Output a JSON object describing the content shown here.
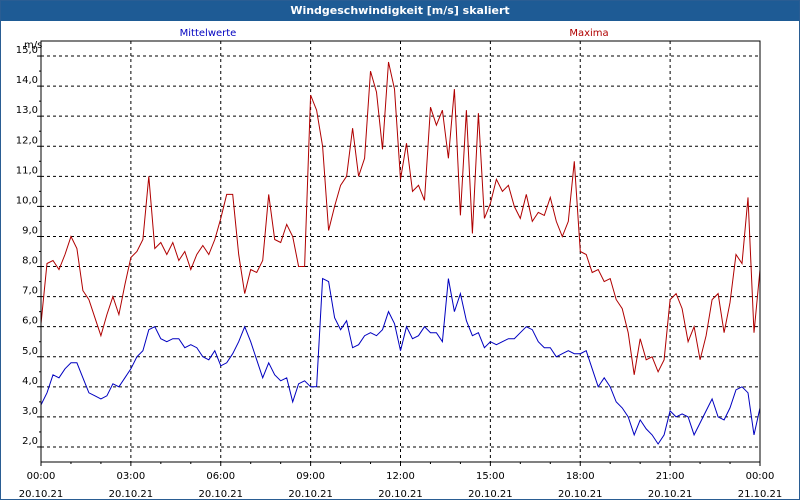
{
  "window": {
    "title": "Windgeschwindigkeit [m/s] skaliert",
    "title_bg": "#1e5b95"
  },
  "chart_data": {
    "type": "line",
    "title": "Windgeschwindigkeit [m/s] skaliert",
    "ylabel": "m/s",
    "xlabel": "",
    "ylim": [
      1.5,
      15.5
    ],
    "xlim": [
      0,
      24
    ],
    "grid": true,
    "y_ticks": [
      "2,0",
      "3,0",
      "4,0",
      "5,0",
      "6,0",
      "7,0",
      "8,0",
      "9,0",
      "10,0",
      "11,0",
      "12,0",
      "13,0",
      "14,0",
      "15,0"
    ],
    "x_ticks": [
      {
        "time": "00:00",
        "date": "20.10.21"
      },
      {
        "time": "03:00",
        "date": "20.10.21"
      },
      {
        "time": "06:00",
        "date": "20.10.21"
      },
      {
        "time": "09:00",
        "date": "20.10.21"
      },
      {
        "time": "12:00",
        "date": "20.10.21"
      },
      {
        "time": "15:00",
        "date": "20.10.21"
      },
      {
        "time": "18:00",
        "date": "20.10.21"
      },
      {
        "time": "21:00",
        "date": "20.10.21"
      },
      {
        "time": "00:00",
        "date": "21.10.21"
      }
    ],
    "series": [
      {
        "name": "Mittelwerte",
        "color": "#0000c0",
        "x": [
          0,
          0.2,
          0.4,
          0.6,
          0.8,
          1.0,
          1.2,
          1.4,
          1.6,
          1.8,
          2.0,
          2.2,
          2.4,
          2.6,
          2.8,
          3.0,
          3.2,
          3.4,
          3.6,
          3.8,
          4.0,
          4.2,
          4.4,
          4.6,
          4.8,
          5.0,
          5.2,
          5.4,
          5.6,
          5.8,
          6.0,
          6.2,
          6.4,
          6.6,
          6.8,
          7.0,
          7.2,
          7.4,
          7.6,
          7.8,
          8.0,
          8.2,
          8.4,
          8.6,
          8.8,
          9.0,
          9.2,
          9.4,
          9.6,
          9.8,
          10.0,
          10.2,
          10.4,
          10.6,
          10.8,
          11.0,
          11.2,
          11.4,
          11.6,
          11.8,
          12.0,
          12.2,
          12.4,
          12.6,
          12.8,
          13.0,
          13.2,
          13.4,
          13.6,
          13.8,
          14.0,
          14.2,
          14.4,
          14.6,
          14.8,
          15.0,
          15.2,
          15.4,
          15.6,
          15.8,
          16.0,
          16.2,
          16.4,
          16.6,
          16.8,
          17.0,
          17.2,
          17.4,
          17.6,
          17.8,
          18.0,
          18.2,
          18.4,
          18.6,
          18.8,
          19.0,
          19.2,
          19.4,
          19.6,
          19.8,
          20.0,
          20.2,
          20.4,
          20.6,
          20.8,
          21.0,
          21.2,
          21.4,
          21.6,
          21.8,
          22.0,
          22.2,
          22.4,
          22.6,
          22.8,
          23.0,
          23.2,
          23.4,
          23.6,
          23.8
        ],
        "values": [
          3.4,
          3.8,
          4.4,
          4.3,
          4.6,
          4.8,
          4.8,
          4.3,
          3.8,
          3.7,
          3.6,
          3.7,
          4.1,
          4.0,
          4.3,
          4.6,
          5.0,
          5.2,
          5.9,
          6.0,
          5.6,
          5.5,
          5.6,
          5.6,
          5.3,
          5.4,
          5.3,
          5.0,
          4.9,
          5.2,
          4.7,
          4.8,
          5.1,
          5.5,
          6.0,
          5.5,
          4.9,
          4.3,
          4.8,
          4.4,
          4.2,
          4.3,
          3.5,
          4.1,
          4.2,
          4.0,
          4.0,
          7.6,
          7.5,
          6.3,
          5.9,
          6.2,
          5.3,
          5.4,
          5.7,
          5.8,
          5.7,
          5.9,
          6.5,
          6.1,
          5.2,
          6.0,
          5.6,
          5.7,
          6.0,
          5.8,
          5.8,
          5.5,
          7.6,
          6.5,
          7.1,
          6.2,
          5.7,
          5.8,
          5.3,
          5.5,
          5.4,
          5.5,
          5.6,
          5.6,
          5.8,
          6.0,
          5.9,
          5.5,
          5.3,
          5.3,
          5.0,
          5.1,
          5.2,
          5.1,
          5.1,
          5.2,
          4.6,
          4.0,
          4.3,
          4.0,
          3.5,
          3.3,
          3.0,
          2.4,
          2.9,
          2.6,
          2.4,
          2.1,
          2.4,
          3.2,
          3.0,
          3.1,
          3.0,
          2.4,
          2.8,
          3.2,
          3.6,
          3.0,
          2.9,
          3.3,
          3.9,
          4.0,
          3.8,
          2.4
        ],
        "note_last": [
          24.0,
          3.3
        ]
      },
      {
        "name": "Maxima",
        "color": "#b00000",
        "x": [
          0,
          0.2,
          0.4,
          0.6,
          0.8,
          1.0,
          1.2,
          1.4,
          1.6,
          1.8,
          2.0,
          2.2,
          2.4,
          2.6,
          2.8,
          3.0,
          3.2,
          3.4,
          3.6,
          3.8,
          4.0,
          4.2,
          4.4,
          4.6,
          4.8,
          5.0,
          5.2,
          5.4,
          5.6,
          5.8,
          6.0,
          6.2,
          6.4,
          6.6,
          6.8,
          7.0,
          7.2,
          7.4,
          7.6,
          7.8,
          8.0,
          8.2,
          8.4,
          8.6,
          8.8,
          9.0,
          9.2,
          9.4,
          9.6,
          9.8,
          10.0,
          10.2,
          10.4,
          10.6,
          10.8,
          11.0,
          11.2,
          11.4,
          11.6,
          11.8,
          12.0,
          12.2,
          12.4,
          12.6,
          12.8,
          13.0,
          13.2,
          13.4,
          13.6,
          13.8,
          14.0,
          14.2,
          14.4,
          14.6,
          14.8,
          15.0,
          15.2,
          15.4,
          15.6,
          15.8,
          16.0,
          16.2,
          16.4,
          16.6,
          16.8,
          17.0,
          17.2,
          17.4,
          17.6,
          17.8,
          18.0,
          18.2,
          18.4,
          18.6,
          18.8,
          19.0,
          19.2,
          19.4,
          19.6,
          19.8,
          20.0,
          20.2,
          20.4,
          20.6,
          20.8,
          21.0,
          21.2,
          21.4,
          21.6,
          21.8,
          22.0,
          22.2,
          22.4,
          22.6,
          22.8,
          23.0,
          23.2,
          23.4,
          23.6,
          23.8
        ],
        "values": [
          6.1,
          8.1,
          8.2,
          7.9,
          8.4,
          9.0,
          8.6,
          7.2,
          6.9,
          6.3,
          5.7,
          6.4,
          7.0,
          6.4,
          7.4,
          8.3,
          8.5,
          8.9,
          11.0,
          8.6,
          8.8,
          8.4,
          8.8,
          8.2,
          8.5,
          7.9,
          8.4,
          8.7,
          8.4,
          8.9,
          9.6,
          10.4,
          10.4,
          8.4,
          7.1,
          7.9,
          7.8,
          8.2,
          10.4,
          8.9,
          8.8,
          9.4,
          9.0,
          8.0,
          8.0,
          13.7,
          13.2,
          12.0,
          9.2,
          10.0,
          10.7,
          11.0,
          12.6,
          11.0,
          11.6,
          14.5,
          13.8,
          11.9,
          14.8,
          13.9,
          10.9,
          12.1,
          10.5,
          10.7,
          10.2,
          13.3,
          12.7,
          13.2,
          11.6,
          13.9,
          9.7,
          13.2,
          9.1,
          13.1,
          9.6,
          10.1,
          10.9,
          10.5,
          10.7,
          10.0,
          9.6,
          10.4,
          9.5,
          9.8,
          9.7,
          10.3,
          9.5,
          9.0,
          9.5,
          11.5,
          8.5,
          8.4,
          7.8,
          7.9,
          7.5,
          7.6,
          6.9,
          6.6,
          5.8,
          4.4,
          5.6,
          4.9,
          5.0,
          4.5,
          4.9,
          6.9,
          7.1,
          6.6,
          5.5,
          6.0,
          4.9,
          5.7,
          6.9,
          7.1,
          5.8,
          6.8,
          8.4,
          8.1,
          10.3,
          5.8
        ],
        "note_last": [
          24.0,
          7.9
        ]
      }
    ]
  }
}
